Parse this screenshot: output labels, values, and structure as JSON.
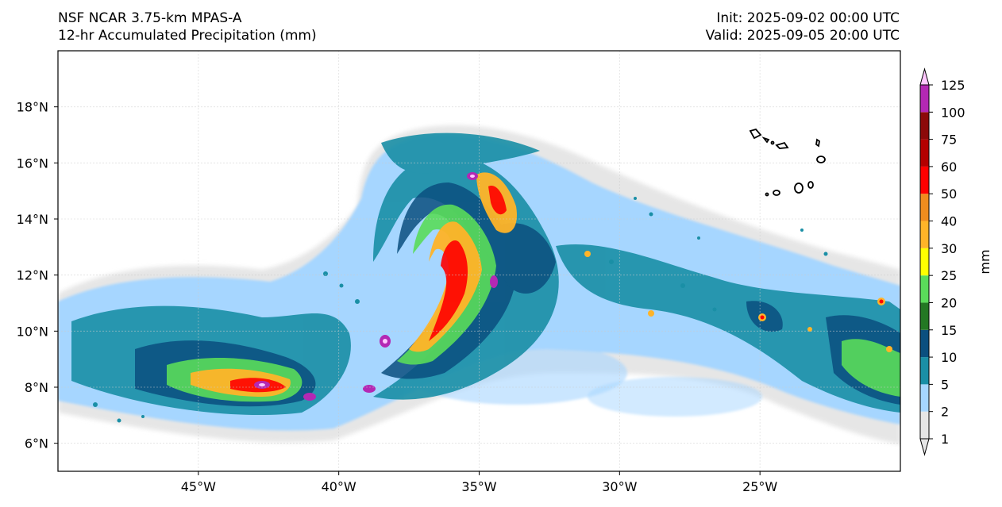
{
  "header": {
    "model": "NSF NCAR 3.75-km MPAS-A",
    "field": "12-hr Accumulated Precipitation (mm)",
    "init": "Init: 2025-09-02 00:00 UTC",
    "valid": "Valid: 2025-09-05 20:00 UTC"
  },
  "map": {
    "lon_range": [
      -50,
      -20
    ],
    "lat_range": [
      5,
      20
    ],
    "lon_ticks": [
      {
        "value": -45,
        "label": "45°W"
      },
      {
        "value": -40,
        "label": "40°W"
      },
      {
        "value": -35,
        "label": "35°W"
      },
      {
        "value": -30,
        "label": "30°W"
      },
      {
        "value": -25,
        "label": "25°W"
      }
    ],
    "lat_ticks": [
      {
        "value": 6,
        "label": "6°N"
      },
      {
        "value": 8,
        "label": "8°N"
      },
      {
        "value": 10,
        "label": "10°N"
      },
      {
        "value": 12,
        "label": "12°N"
      },
      {
        "value": 14,
        "label": "14°N"
      },
      {
        "value": 16,
        "label": "16°N"
      },
      {
        "value": 18,
        "label": "18°N"
      }
    ],
    "gridlines": true,
    "islands": "Cabo Verde"
  },
  "colorbar": {
    "unit_label": "mm",
    "extend": "both",
    "levels": [
      {
        "label": "1",
        "color": "#e6e6e6"
      },
      {
        "label": "2",
        "color": "#a6d6ff"
      },
      {
        "label": "5",
        "color": "#1a8fa6"
      },
      {
        "label": "10",
        "color": "#0b4f7f"
      },
      {
        "label": "15",
        "color": "#237823"
      },
      {
        "label": "20",
        "color": "#5adc5a"
      },
      {
        "label": "25",
        "color": "#ffff00"
      },
      {
        "label": "30",
        "color": "#ffb428"
      },
      {
        "label": "40",
        "color": "#f08c1e"
      },
      {
        "label": "50",
        "color": "#ff0000"
      },
      {
        "label": "60",
        "color": "#b40000"
      },
      {
        "label": "75",
        "color": "#8c0a0a"
      },
      {
        "label": "100",
        "color": "#b428b4"
      },
      {
        "label": "125",
        "color": "#ffc8ff"
      }
    ]
  }
}
